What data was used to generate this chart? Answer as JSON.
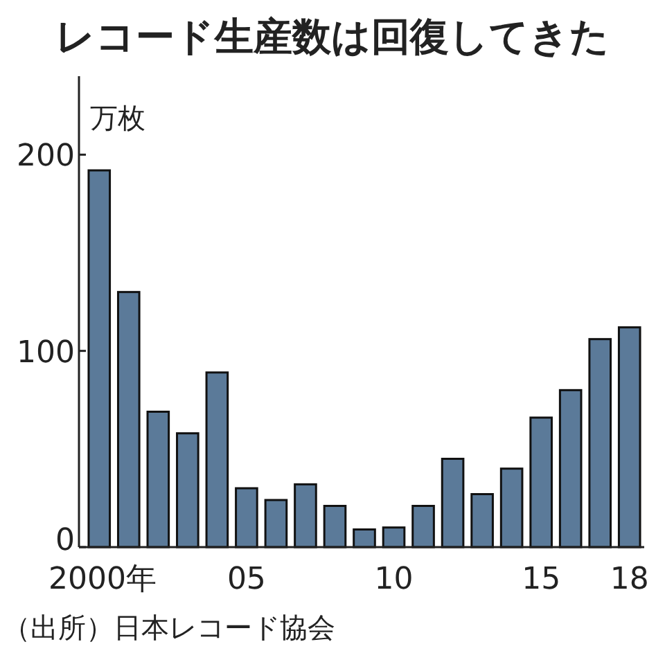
{
  "chart_data": {
    "type": "bar",
    "title": "レコード生産数は回復してきた",
    "ylabel": "万枚",
    "categories": [
      "2000年",
      null,
      null,
      null,
      null,
      "05",
      null,
      null,
      null,
      null,
      "10",
      null,
      null,
      null,
      null,
      "15",
      null,
      null,
      "18"
    ],
    "values": [
      192,
      130,
      69,
      58,
      89,
      30,
      24,
      32,
      21,
      9,
      10,
      21,
      45,
      27,
      40,
      66,
      80,
      106,
      112
    ],
    "color": "#5b7a99",
    "ylim": [
      0,
      240
    ],
    "yticks": [
      0,
      100,
      200
    ],
    "grid": false,
    "annotations": [
      "（出所）日本レコード協会"
    ]
  }
}
